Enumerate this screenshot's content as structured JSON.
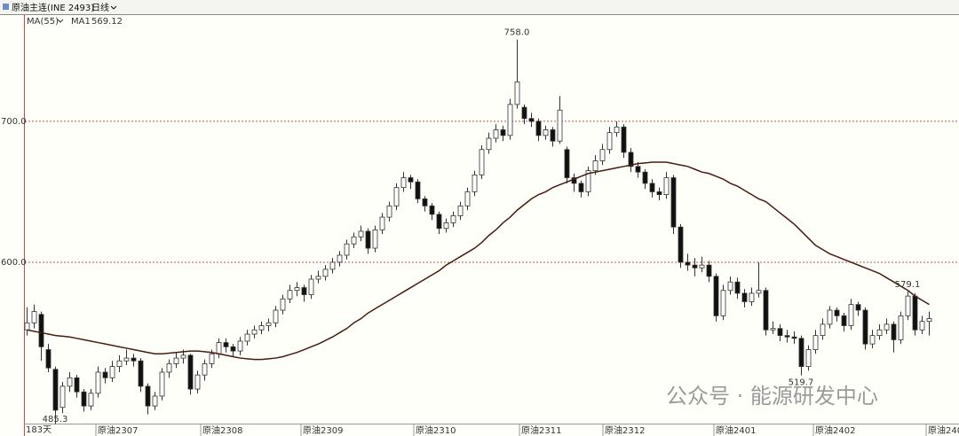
{
  "header": {
    "title": "原油主连(INE 2493)",
    "period": "日线"
  },
  "chart_data": {
    "type": "candlestick",
    "indicator": "MA(55)",
    "series": [
      {
        "name": "MA1",
        "value_label": "569.12",
        "color": "#4a1a10",
        "values": [
          552,
          551,
          550,
          549,
          548,
          547.5,
          547,
          546,
          545,
          544,
          543,
          542,
          541,
          540,
          539,
          538,
          537,
          536,
          535,
          535,
          535.5,
          536,
          536.5,
          537,
          537,
          536.5,
          536,
          535,
          534,
          533,
          532,
          531.5,
          531,
          531,
          531.5,
          532,
          533,
          534.5,
          536,
          538,
          540,
          542,
          544.5,
          547,
          550,
          553,
          557,
          560,
          564,
          567,
          570,
          573,
          576,
          579,
          582,
          585,
          588,
          591,
          594,
          598,
          601,
          604,
          607,
          610,
          614,
          619,
          623,
          628,
          632,
          637,
          641,
          645,
          648,
          650,
          653,
          655,
          657,
          659,
          661,
          663,
          664,
          665,
          666,
          667,
          668,
          669,
          670,
          670.5,
          671,
          671,
          671,
          670,
          669,
          668,
          666,
          664,
          663,
          661,
          659,
          656,
          654,
          651,
          648,
          645,
          643,
          639,
          635,
          631,
          627,
          622,
          617,
          612,
          609,
          606,
          604,
          602,
          600,
          598,
          596,
          594,
          592,
          589,
          586,
          583,
          580,
          576,
          573,
          570
        ]
      }
    ],
    "candles": [
      [
        552,
        568,
        548,
        557
      ],
      [
        557,
        570,
        553,
        565
      ],
      [
        563,
        565,
        530,
        540
      ],
      [
        538,
        542,
        522,
        525
      ],
      [
        524,
        526,
        485.3,
        495
      ],
      [
        497,
        515,
        493,
        512
      ],
      [
        512,
        522,
        508,
        518
      ],
      [
        518,
        520,
        504,
        508
      ],
      [
        508,
        510,
        494,
        498
      ],
      [
        498,
        510,
        495,
        507
      ],
      [
        507,
        526,
        504,
        522
      ],
      [
        522,
        525,
        514,
        518
      ],
      [
        518,
        530,
        515,
        526
      ],
      [
        526,
        534,
        522,
        530
      ],
      [
        530,
        538,
        527,
        532
      ],
      [
        532,
        535,
        526,
        530
      ],
      [
        530,
        532,
        508,
        512
      ],
      [
        512,
        514,
        492,
        498
      ],
      [
        498,
        508,
        495,
        505
      ],
      [
        505,
        525,
        502,
        522
      ],
      [
        522,
        531,
        518,
        528
      ],
      [
        528,
        536,
        525,
        532
      ],
      [
        532,
        538,
        528,
        534
      ],
      [
        534,
        535,
        506,
        510
      ],
      [
        510,
        523,
        507,
        520
      ],
      [
        520,
        531,
        516,
        528
      ],
      [
        528,
        538,
        525,
        535
      ],
      [
        535,
        546,
        532,
        543
      ],
      [
        543,
        546,
        536,
        540
      ],
      [
        540,
        542,
        533,
        537
      ],
      [
        537,
        547,
        534,
        544
      ],
      [
        544,
        552,
        541,
        549
      ],
      [
        549,
        555,
        546,
        552
      ],
      [
        552,
        558,
        549,
        555
      ],
      [
        555,
        560,
        551,
        557
      ],
      [
        557,
        569,
        554,
        566
      ],
      [
        566,
        577,
        563,
        574
      ],
      [
        574,
        584,
        571,
        580
      ],
      [
        580,
        586,
        576,
        582
      ],
      [
        582,
        584,
        572,
        577
      ],
      [
        577,
        591,
        574,
        588
      ],
      [
        588,
        594,
        585,
        590
      ],
      [
        590,
        598,
        587,
        595
      ],
      [
        595,
        603,
        592,
        600
      ],
      [
        600,
        608,
        597,
        605
      ],
      [
        605,
        616,
        602,
        613
      ],
      [
        613,
        621,
        610,
        618
      ],
      [
        618,
        626,
        615,
        622
      ],
      [
        622,
        624,
        606,
        610
      ],
      [
        610,
        626,
        607,
        623
      ],
      [
        623,
        635,
        620,
        632
      ],
      [
        632,
        643,
        629,
        640
      ],
      [
        640,
        656,
        637,
        653
      ],
      [
        653,
        664,
        650,
        660
      ],
      [
        660,
        662,
        652,
        657
      ],
      [
        657,
        659,
        642,
        645
      ],
      [
        645,
        647,
        636,
        640
      ],
      [
        640,
        642,
        630,
        634
      ],
      [
        634,
        636,
        620,
        624
      ],
      [
        624,
        631,
        621,
        628
      ],
      [
        628,
        636,
        625,
        633
      ],
      [
        633,
        643,
        630,
        640
      ],
      [
        640,
        653,
        637,
        650
      ],
      [
        650,
        665,
        647,
        662
      ],
      [
        662,
        683,
        659,
        680
      ],
      [
        680,
        692,
        677,
        688
      ],
      [
        688,
        698,
        685,
        694
      ],
      [
        694,
        697,
        686,
        690
      ],
      [
        690,
        716,
        687,
        712
      ],
      [
        712,
        758,
        709,
        728
      ],
      [
        710,
        712,
        698,
        702
      ],
      [
        702,
        706,
        696,
        700
      ],
      [
        700,
        702,
        686,
        690
      ],
      [
        690,
        697,
        687,
        694
      ],
      [
        694,
        696,
        682,
        686
      ],
      [
        686,
        718,
        684,
        708
      ],
      [
        680,
        682,
        656,
        660
      ],
      [
        660,
        663,
        650,
        656
      ],
      [
        656,
        658,
        646,
        650
      ],
      [
        650,
        668,
        647,
        665
      ],
      [
        665,
        676,
        662,
        672
      ],
      [
        672,
        684,
        669,
        680
      ],
      [
        680,
        696,
        677,
        692
      ],
      [
        692,
        700,
        689,
        696
      ],
      [
        696,
        698,
        674,
        678
      ],
      [
        678,
        681,
        664,
        668
      ],
      [
        668,
        671,
        660,
        664
      ],
      [
        664,
        666,
        652,
        656
      ],
      [
        656,
        659,
        646,
        650
      ],
      [
        650,
        653,
        644,
        648
      ],
      [
        648,
        664,
        645,
        660
      ],
      [
        660,
        662,
        620,
        625
      ],
      [
        625,
        627,
        596,
        600
      ],
      [
        600,
        606,
        594,
        598
      ],
      [
        598,
        603,
        590,
        596
      ],
      [
        596,
        604,
        593,
        598
      ],
      [
        598,
        601,
        586,
        590
      ],
      [
        590,
        592,
        558,
        562
      ],
      [
        562,
        584,
        559,
        580
      ],
      [
        580,
        590,
        577,
        586
      ],
      [
        586,
        589,
        574,
        578
      ],
      [
        578,
        581,
        568,
        572
      ],
      [
        572,
        582,
        569,
        578
      ],
      [
        578,
        600,
        575,
        580
      ],
      [
        580,
        582,
        548,
        552
      ],
      [
        552,
        558,
        549,
        553
      ],
      [
        553,
        556,
        544,
        548
      ],
      [
        548,
        552,
        543,
        547
      ],
      [
        547,
        551,
        542,
        546
      ],
      [
        546,
        548,
        519.7,
        526
      ],
      [
        526,
        541,
        523,
        538
      ],
      [
        538,
        552,
        535,
        548
      ],
      [
        548,
        560,
        545,
        556
      ],
      [
        556,
        569,
        553,
        566
      ],
      [
        566,
        568,
        558,
        562
      ],
      [
        562,
        564,
        551,
        555
      ],
      [
        555,
        574,
        552,
        570
      ],
      [
        570,
        572,
        562,
        566
      ],
      [
        566,
        568,
        538,
        542
      ],
      [
        542,
        552,
        539,
        548
      ],
      [
        548,
        556,
        545,
        552
      ],
      [
        552,
        560,
        549,
        556
      ],
      [
        556,
        558,
        536,
        545
      ],
      [
        545,
        565,
        542,
        562
      ],
      [
        562,
        579.1,
        559,
        576
      ],
      [
        576,
        578,
        548,
        552
      ],
      [
        552,
        562,
        549,
        558
      ],
      [
        558,
        565,
        548,
        560
      ]
    ],
    "up_color": "#ffffff",
    "down_color": "#111111",
    "outline_color": "#333333",
    "ylim": [
      485.5,
      774.8
    ],
    "yticks": [
      {
        "value": 600,
        "label": "600.0"
      },
      {
        "value": 700,
        "label": "700.0"
      }
    ],
    "grid": true,
    "grid_color": "#c0504d",
    "x_labels": [
      "原油2307",
      "原油2308",
      "原油2309",
      "原油2310",
      "原油2311",
      "原油2312",
      "原油2401",
      "原油2402",
      "原油240"
    ],
    "days_label": "183天",
    "annotations": [
      {
        "label": "758.0",
        "value": 758
      },
      {
        "label": "579.1",
        "value": 579.1
      },
      {
        "label": "519.7",
        "value": 519.7
      },
      {
        "label": "485.3",
        "value": 485.3
      }
    ]
  },
  "watermark": "公众号 · 能源研发中心"
}
